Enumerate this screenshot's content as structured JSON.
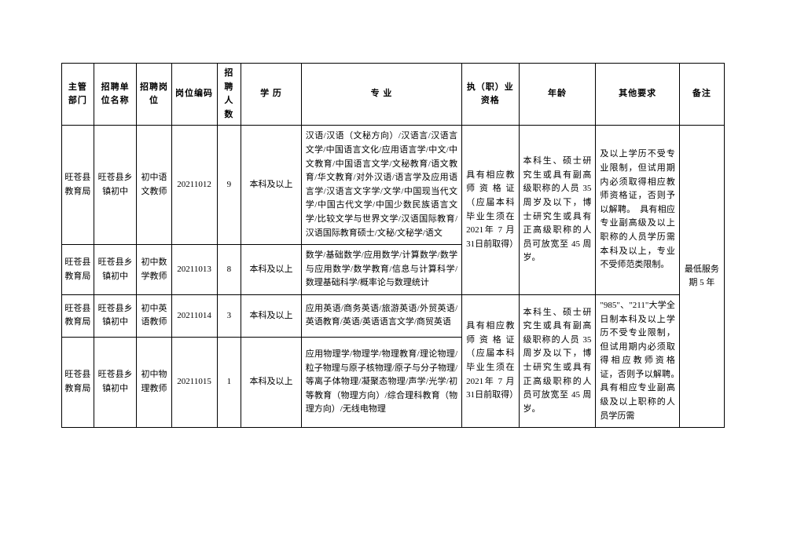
{
  "headers": {
    "dept": "主管部门",
    "unit": "招聘单位名称",
    "post": "招聘岗位",
    "code": "岗位编码",
    "num": "招聘人数",
    "edu": "学 历",
    "major": "专 业",
    "qual": "执（职）业资格",
    "age": "年龄",
    "other": "其他要求",
    "note": "备注"
  },
  "rows": [
    {
      "dept": "旺苍县教育局",
      "unit": "旺苍县乡镇初中",
      "post": "初中语文教师",
      "code": "20211012",
      "num": "9",
      "edu": "本科及以上",
      "major": "汉语/汉语（文秘方向）/汉语言/汉语言文学/中国语言文化/应用语言学/中文/中文教育/中国语言文学/文秘教育/语文教育/华文教育/对外汉语/语言学及应用语言学/汉语言文字学/文学/中国现当代文学/中国古代文学/中国少数民族语言文学/比较文学与世界文学/汉语国际教育/汉语国际教育硕士/文秘/文秘学/语文"
    },
    {
      "dept": "旺苍县教育局",
      "unit": "旺苍县乡镇初中",
      "post": "初中数学教师",
      "code": "20211013",
      "num": "8",
      "edu": "本科及以上",
      "major": "数学/基础数学/应用数学/计算数学/数学与应用数学/数学教育/信息与计算科学/数理基础科学/概率论与数理统计"
    },
    {
      "dept": "旺苍县教育局",
      "unit": "旺苍县乡镇初中",
      "post": "初中英语教师",
      "code": "20211014",
      "num": "3",
      "edu": "本科及以上",
      "major": "应用英语/商务英语/旅游英语/外贸英语/英语教育/英语/英语语言文学/商贸英语"
    },
    {
      "dept": "旺苍县教育局",
      "unit": "旺苍县乡镇初中",
      "post": "初中物理教师",
      "code": "20211015",
      "num": "1",
      "edu": "本科及以上",
      "major": "应用物理学/物理学/物理教育/理论物理/粒子物理与原子核物理/原子与分子物理/等离子体物理/凝聚态物理/声学/光学/初等教育（物理方向）/综合理科教育（物理方向）/无线电物理"
    }
  ],
  "merged": {
    "qual1": "具有相应教师资格证（应届本科毕业生须在 2021年 7 月 31日前取得）",
    "age1": "本科生、硕士研究生或具有副高级职称的人员 35 周岁及以下，博士研究生或具有正高级职称的人员可放宽至 45 周岁。",
    "other1": "及以上学历不受专业限制，但试用期内必须取得相应教师资格证，否则予以解聘。　具有相应专业副高级及以上职称的人员学历需本科及以上，专业不受师范类限制。",
    "qual2": "具有相应教师资格证（应届本科毕业生须在 2021年 7 月 31日前取得）",
    "age2": "本科生、硕士研究生或具有副高级职称的人员 35 周岁及以下，博士研究生或具有正高级职称的人员可放宽至 45 周岁。",
    "other2": "\"985\"、\"211\"大学全日制本科及以上学历不受专业限制，但试用期内必须取得相应教师资格证，否则予以解聘。　具有相应专业副高级及以上职称的人员学历需",
    "note": "最低服务期 5 年"
  }
}
